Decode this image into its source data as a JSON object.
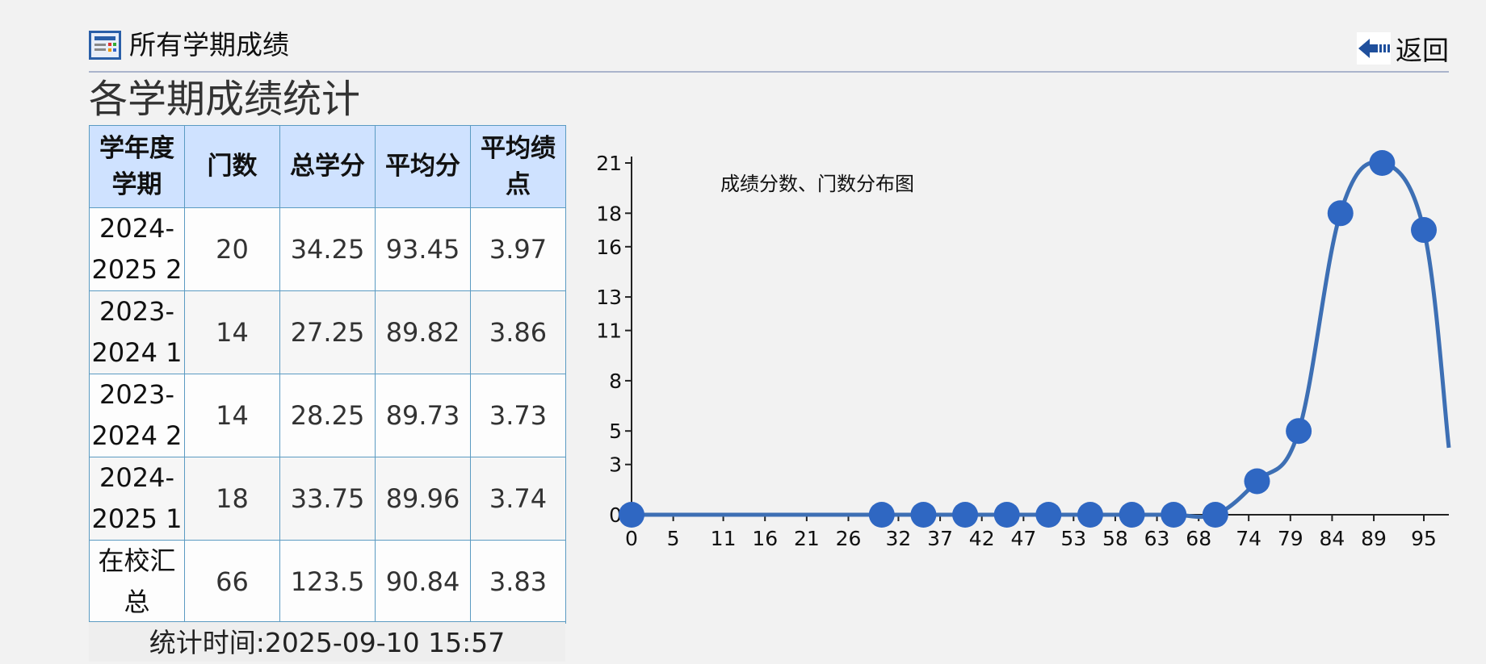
{
  "header": {
    "title": "所有学期成绩",
    "back_label": "返回"
  },
  "section_title": "各学期成绩统计",
  "table": {
    "columns": [
      "学年度\n学期",
      "门数",
      "总学分",
      "平均分",
      "平均绩\n点"
    ],
    "rows": [
      {
        "term": "2024-\n2025 2",
        "courses": "20",
        "credits": "34.25",
        "avg": "93.45",
        "gpa": "3.97"
      },
      {
        "term": "2023-\n2024 1",
        "courses": "14",
        "credits": "27.25",
        "avg": "89.82",
        "gpa": "3.86"
      },
      {
        "term": "2023-\n2024 2",
        "courses": "14",
        "credits": "28.25",
        "avg": "89.73",
        "gpa": "3.73"
      },
      {
        "term": "2024-\n2025 1",
        "courses": "18",
        "credits": "33.75",
        "avg": "89.96",
        "gpa": "3.74"
      },
      {
        "term": "在校汇\n总",
        "courses": "66",
        "credits": "123.5",
        "avg": "90.84",
        "gpa": "3.83"
      }
    ],
    "footer": "统计时间:2025-09-10 15:57"
  },
  "chart_data": {
    "type": "line",
    "title": "成绩分数、门数分布图",
    "xlabel": "",
    "ylabel": "",
    "x_ticks": [
      "0",
      "5",
      "11",
      "16",
      "21",
      "26",
      "32",
      "37",
      "42",
      "47",
      "53",
      "58",
      "63",
      "68",
      "74",
      "79",
      "84",
      "89",
      "95"
    ],
    "y_ticks": [
      "0",
      "3",
      "5",
      "8",
      "11",
      "13",
      "16",
      "18",
      "21"
    ],
    "xlim": [
      0,
      98
    ],
    "ylim": [
      0,
      21
    ],
    "smooth": true,
    "colors": {
      "line": "#3d6fb4",
      "point": "#2f67c2",
      "axis": "#222222"
    },
    "series": [
      {
        "points": [
          [
            0,
            0
          ],
          [
            30,
            0
          ],
          [
            35,
            0
          ],
          [
            40,
            0
          ],
          [
            45,
            0
          ],
          [
            50,
            0
          ],
          [
            55,
            0
          ],
          [
            60,
            0
          ],
          [
            65,
            0
          ],
          [
            70,
            0
          ],
          [
            75,
            2
          ],
          [
            80,
            5
          ],
          [
            85,
            18
          ],
          [
            90,
            21
          ],
          [
            95,
            17
          ]
        ]
      }
    ]
  }
}
